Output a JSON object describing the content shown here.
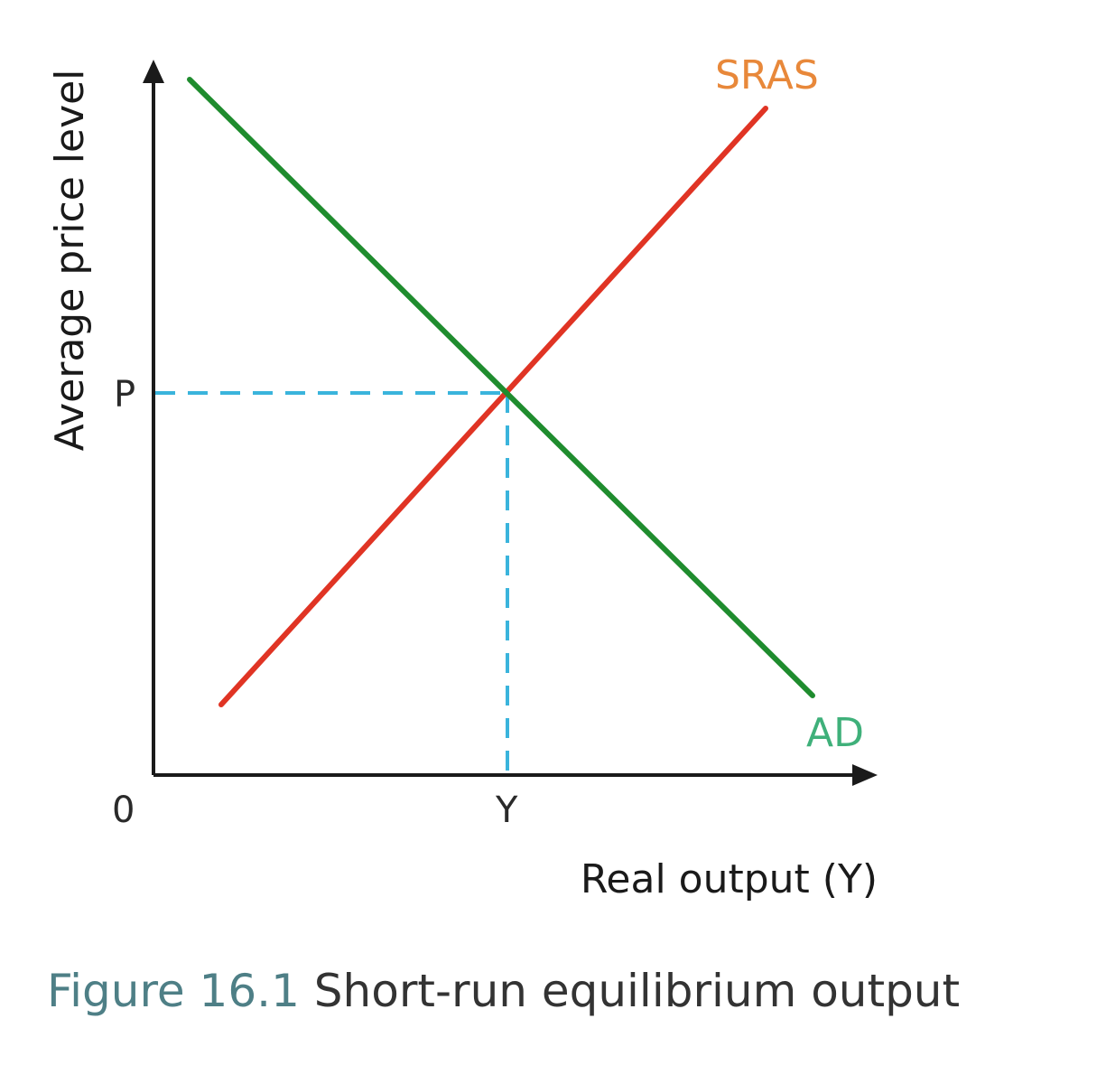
{
  "figure": {
    "number": "Figure 16.1",
    "title": "Short-run equilibrium output"
  },
  "axes": {
    "x_label": "Real output (Y)",
    "y_label": "Average price level",
    "origin_label": "0",
    "x_tick": "Y",
    "y_tick": "P"
  },
  "curves": {
    "supply": {
      "label": "SRAS",
      "color": "#e03424",
      "label_color": "#e8883a"
    },
    "demand": {
      "label": "AD",
      "color": "#1f8c2e",
      "label_color": "#3fb07a"
    }
  },
  "equilibrium": {
    "guide_color": "#3ab4dc"
  },
  "colors": {
    "axis": "#1a1a1a"
  }
}
